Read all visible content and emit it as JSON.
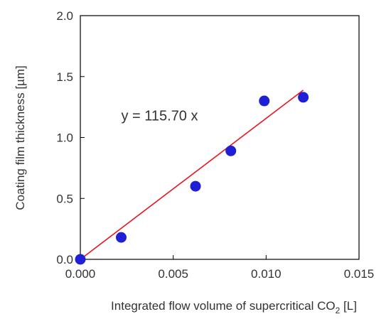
{
  "chart_data": {
    "type": "scatter",
    "title": "",
    "xlabel": "Integrated flow volume of supercritical CO",
    "xlabel_subscript": "2",
    "xlabel_unit": " [L]",
    "ylabel": "Coating film thickness [µm]",
    "xlim": [
      0,
      0.015
    ],
    "ylim": [
      0,
      2.0
    ],
    "x_ticks": [
      "0.000",
      "0.005",
      "0.010",
      "0.015"
    ],
    "y_ticks": [
      "0.0",
      "0.5",
      "1.0",
      "1.5",
      "2.0"
    ],
    "grid": false,
    "legend": "none",
    "series": [
      {
        "kind": "points",
        "color": "#1f1fd6",
        "x": [
          0.0,
          0.0022,
          0.0062,
          0.0081,
          0.0099,
          0.012
        ],
        "y": [
          0.0,
          0.18,
          0.6,
          0.89,
          1.3,
          1.33
        ]
      },
      {
        "kind": "fit-line",
        "color": "#e8141e",
        "slope": 115.7,
        "x_range": [
          0.0,
          0.012
        ]
      }
    ],
    "annotations": [
      {
        "text": "y = 115.70 x",
        "x": 0.0035,
        "y": 1.18
      }
    ]
  }
}
